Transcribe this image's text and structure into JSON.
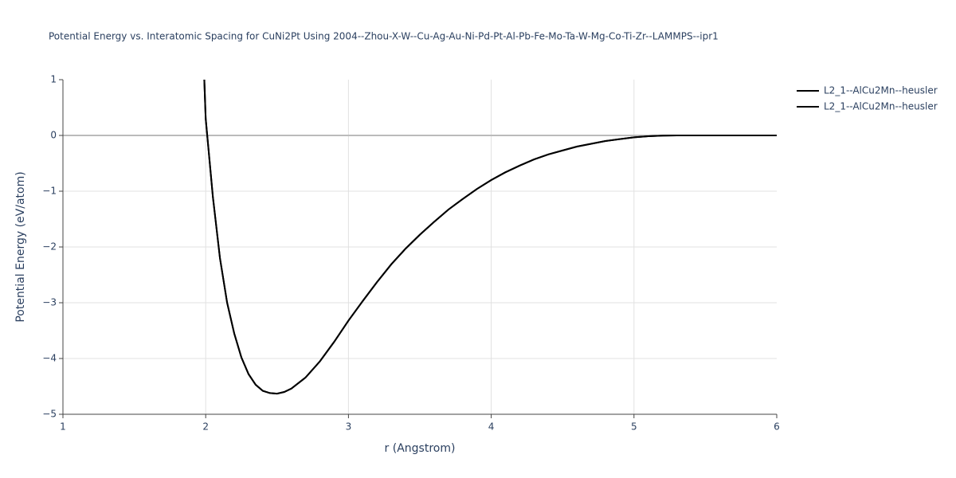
{
  "chart_data": {
    "type": "line",
    "title": "Potential Energy vs. Interatomic Spacing for CuNi2Pt Using 2004--Zhou-X-W--Cu-Ag-Au-Ni-Pd-Pt-Al-Pb-Fe-Mo-Ta-W-Mg-Co-Ti-Zr--LAMMPS--ipr1",
    "x_label": "r (Angstrom)",
    "y_label": "Potential Energy (eV/atom)",
    "x": [
      1.99,
      2.0,
      2.05,
      2.1,
      2.15,
      2.2,
      2.25,
      2.3,
      2.35,
      2.4,
      2.45,
      2.5,
      2.55,
      2.6,
      2.7,
      2.8,
      2.9,
      3.0,
      3.1,
      3.2,
      3.3,
      3.4,
      3.5,
      3.6,
      3.7,
      3.8,
      3.9,
      4.0,
      4.1,
      4.2,
      4.3,
      4.4,
      4.5,
      4.6,
      4.7,
      4.8,
      4.9,
      5.0,
      5.1,
      5.2,
      5.3,
      5.5,
      6.0
    ],
    "series": [
      {
        "name": "L2_1--AlCu2Mn--heusler",
        "color": "#000000",
        "values": [
          1.0,
          0.3,
          -1.1,
          -2.2,
          -3.0,
          -3.55,
          -3.98,
          -4.28,
          -4.47,
          -4.58,
          -4.62,
          -4.63,
          -4.6,
          -4.54,
          -4.34,
          -4.05,
          -3.7,
          -3.32,
          -2.97,
          -2.63,
          -2.31,
          -2.03,
          -1.78,
          -1.55,
          -1.33,
          -1.14,
          -0.96,
          -0.8,
          -0.66,
          -0.54,
          -0.43,
          -0.34,
          -0.27,
          -0.2,
          -0.15,
          -0.1,
          -0.065,
          -0.035,
          -0.015,
          -0.005,
          0,
          0,
          0
        ]
      },
      {
        "name": "L2_1--AlCu2Mn--heusler",
        "color": "#000000",
        "values": [
          1.0,
          0.3,
          -1.1,
          -2.2,
          -3.0,
          -3.55,
          -3.98,
          -4.28,
          -4.47,
          -4.58,
          -4.62,
          -4.63,
          -4.6,
          -4.54,
          -4.34,
          -4.05,
          -3.7,
          -3.32,
          -2.97,
          -2.63,
          -2.31,
          -2.03,
          -1.78,
          -1.55,
          -1.33,
          -1.14,
          -0.96,
          -0.8,
          -0.66,
          -0.54,
          -0.43,
          -0.34,
          -0.27,
          -0.2,
          -0.15,
          -0.1,
          -0.065,
          -0.035,
          -0.015,
          -0.005,
          0,
          0,
          0
        ]
      }
    ],
    "xlim": [
      1,
      6
    ],
    "xticks": [
      1,
      2,
      3,
      4,
      5,
      6
    ],
    "ylim": [
      -5,
      1
    ],
    "yticks": [
      {
        "value": -5,
        "label": "−5"
      },
      {
        "value": -4,
        "label": "−4"
      },
      {
        "value": -3,
        "label": "−3"
      },
      {
        "value": -2,
        "label": "−2"
      },
      {
        "value": -1,
        "label": "−1"
      },
      0,
      1
    ],
    "grid": true,
    "legend": "top-right"
  }
}
